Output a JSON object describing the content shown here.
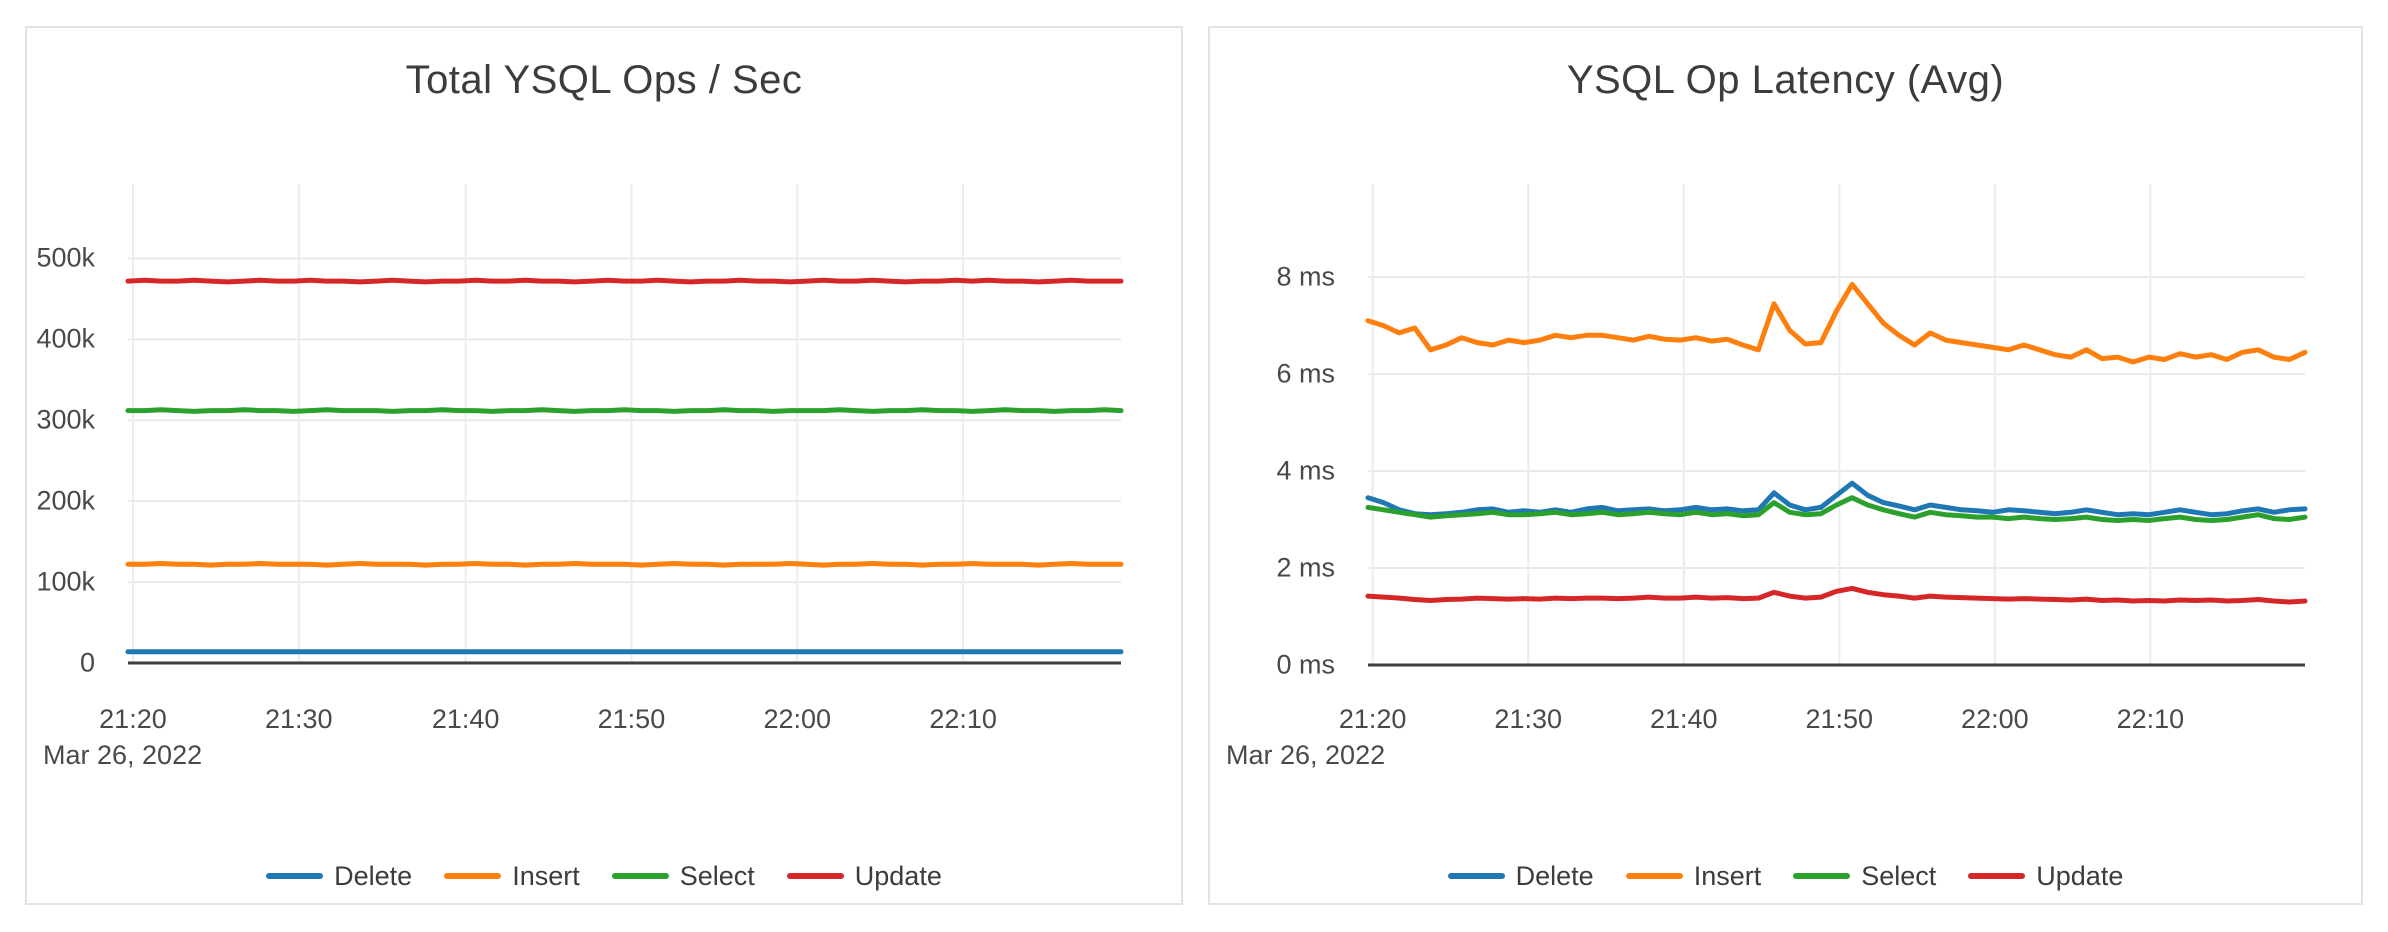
{
  "colors": {
    "delete_blue": "#1f77b4",
    "insert_orange": "#ff7f0e",
    "select_green": "#2ca02c",
    "update_red": "#d62728",
    "grid": "#e9e9e9",
    "axis_line": "#3f3f3f",
    "text": "#3c3c3c"
  },
  "chart_data": [
    {
      "type": "line",
      "title": "Total YSQL Ops / Sec",
      "x_axis_date": "Mar 26, 2022",
      "x_tick_labels": [
        "21:20",
        "21:30",
        "21:40",
        "21:50",
        "22:00",
        "22:10"
      ],
      "y_tick_labels": [
        "0",
        "100k",
        "200k",
        "300k",
        "400k",
        "500k"
      ],
      "y_tick_values": [
        0,
        100,
        200,
        300,
        400,
        500
      ],
      "y_unit": "thousand ops/sec",
      "ylim": [
        0,
        592
      ],
      "grid": true,
      "legend_position": "bottom",
      "x_points": 61,
      "x_range_minutes": [
        "21:19",
        "22:19"
      ],
      "series": [
        {
          "name": "Delete",
          "color": "#1f77b4",
          "values": [
            14,
            14,
            14,
            14,
            14,
            14,
            14,
            14,
            14,
            14,
            14,
            14,
            14,
            14,
            14,
            14,
            14,
            14,
            14,
            14,
            14,
            14,
            14,
            14,
            14,
            14,
            14,
            14,
            14,
            14,
            14,
            14,
            14,
            14,
            14,
            14,
            14,
            14,
            14,
            14,
            14,
            14,
            14,
            14,
            14,
            14,
            14,
            14,
            14,
            14,
            14,
            14,
            14,
            14,
            14,
            14,
            14,
            14,
            14,
            14,
            14
          ]
        },
        {
          "name": "Insert",
          "color": "#ff7f0e",
          "values": [
            122,
            122,
            123,
            122,
            122,
            121,
            122,
            122,
            123,
            122,
            122,
            122,
            121,
            122,
            123,
            122,
            122,
            122,
            121,
            122,
            122,
            123,
            122,
            122,
            121,
            122,
            122,
            123,
            122,
            122,
            122,
            121,
            122,
            123,
            122,
            122,
            121,
            122,
            122,
            122,
            123,
            122,
            121,
            122,
            122,
            123,
            122,
            122,
            121,
            122,
            122,
            123,
            122,
            122,
            122,
            121,
            122,
            123,
            122,
            122,
            122
          ]
        },
        {
          "name": "Select",
          "color": "#2ca02c",
          "values": [
            312,
            312,
            313,
            312,
            311,
            312,
            312,
            313,
            312,
            312,
            311,
            312,
            313,
            312,
            312,
            312,
            311,
            312,
            312,
            313,
            312,
            312,
            311,
            312,
            312,
            313,
            312,
            311,
            312,
            312,
            313,
            312,
            312,
            311,
            312,
            312,
            313,
            312,
            312,
            311,
            312,
            312,
            312,
            313,
            312,
            311,
            312,
            312,
            313,
            312,
            312,
            311,
            312,
            313,
            312,
            312,
            311,
            312,
            312,
            313,
            312
          ]
        },
        {
          "name": "Update",
          "color": "#d62728",
          "values": [
            472,
            473,
            472,
            472,
            473,
            472,
            471,
            472,
            473,
            472,
            472,
            473,
            472,
            472,
            471,
            472,
            473,
            472,
            471,
            472,
            472,
            473,
            472,
            472,
            473,
            472,
            472,
            471,
            472,
            473,
            472,
            472,
            473,
            472,
            471,
            472,
            472,
            473,
            472,
            472,
            471,
            472,
            473,
            472,
            472,
            473,
            472,
            471,
            472,
            472,
            473,
            472,
            473,
            472,
            472,
            471,
            472,
            473,
            472,
            472,
            472
          ]
        }
      ]
    },
    {
      "type": "line",
      "title": "YSQL Op Latency (Avg)",
      "x_axis_date": "Mar 26, 2022",
      "x_tick_labels": [
        "21:20",
        "21:30",
        "21:40",
        "21:50",
        "22:00",
        "22:10"
      ],
      "y_tick_labels": [
        "0 ms",
        "2 ms",
        "4 ms",
        "6 ms",
        "8 ms"
      ],
      "y_tick_values": [
        0,
        2,
        4,
        6,
        8
      ],
      "y_unit": "ms",
      "ylim": [
        0,
        9.92
      ],
      "grid": true,
      "legend_position": "bottom",
      "x_points": 61,
      "x_range_minutes": [
        "21:19",
        "22:19"
      ],
      "series": [
        {
          "name": "Delete",
          "color": "#1f77b4",
          "values": [
            3.45,
            3.35,
            3.2,
            3.12,
            3.1,
            3.12,
            3.15,
            3.2,
            3.22,
            3.15,
            3.18,
            3.15,
            3.2,
            3.15,
            3.22,
            3.25,
            3.18,
            3.2,
            3.22,
            3.18,
            3.2,
            3.25,
            3.2,
            3.22,
            3.18,
            3.2,
            3.55,
            3.3,
            3.2,
            3.25,
            3.5,
            3.75,
            3.5,
            3.35,
            3.28,
            3.2,
            3.3,
            3.25,
            3.2,
            3.18,
            3.15,
            3.2,
            3.18,
            3.15,
            3.12,
            3.15,
            3.2,
            3.15,
            3.1,
            3.12,
            3.1,
            3.15,
            3.2,
            3.15,
            3.1,
            3.12,
            3.18,
            3.22,
            3.15,
            3.2,
            3.22
          ]
        },
        {
          "name": "Insert",
          "color": "#ff7f0e",
          "values": [
            7.1,
            7.0,
            6.85,
            6.95,
            6.5,
            6.6,
            6.75,
            6.65,
            6.6,
            6.7,
            6.65,
            6.7,
            6.8,
            6.75,
            6.8,
            6.8,
            6.75,
            6.7,
            6.78,
            6.72,
            6.7,
            6.75,
            6.68,
            6.72,
            6.6,
            6.5,
            7.45,
            6.9,
            6.62,
            6.65,
            7.3,
            7.85,
            7.45,
            7.05,
            6.8,
            6.6,
            6.85,
            6.7,
            6.65,
            6.6,
            6.55,
            6.5,
            6.6,
            6.5,
            6.4,
            6.35,
            6.5,
            6.32,
            6.35,
            6.25,
            6.35,
            6.3,
            6.42,
            6.35,
            6.4,
            6.3,
            6.45,
            6.5,
            6.35,
            6.3,
            6.45
          ]
        },
        {
          "name": "Select",
          "color": "#2ca02c",
          "values": [
            3.25,
            3.2,
            3.15,
            3.1,
            3.05,
            3.08,
            3.1,
            3.12,
            3.15,
            3.1,
            3.1,
            3.12,
            3.15,
            3.1,
            3.12,
            3.15,
            3.1,
            3.12,
            3.15,
            3.12,
            3.1,
            3.15,
            3.1,
            3.12,
            3.08,
            3.1,
            3.35,
            3.15,
            3.1,
            3.12,
            3.3,
            3.45,
            3.3,
            3.2,
            3.12,
            3.05,
            3.15,
            3.1,
            3.08,
            3.05,
            3.05,
            3.02,
            3.05,
            3.02,
            3.0,
            3.02,
            3.05,
            3.0,
            2.98,
            3.0,
            2.98,
            3.02,
            3.05,
            3.0,
            2.98,
            3.0,
            3.05,
            3.1,
            3.02,
            3.0,
            3.05
          ]
        },
        {
          "name": "Update",
          "color": "#d62728",
          "values": [
            1.42,
            1.4,
            1.38,
            1.35,
            1.33,
            1.35,
            1.36,
            1.38,
            1.37,
            1.36,
            1.37,
            1.36,
            1.38,
            1.37,
            1.38,
            1.38,
            1.37,
            1.38,
            1.4,
            1.38,
            1.38,
            1.4,
            1.38,
            1.39,
            1.37,
            1.38,
            1.5,
            1.42,
            1.38,
            1.4,
            1.52,
            1.58,
            1.5,
            1.45,
            1.42,
            1.38,
            1.42,
            1.4,
            1.39,
            1.38,
            1.37,
            1.36,
            1.37,
            1.36,
            1.35,
            1.34,
            1.36,
            1.33,
            1.34,
            1.32,
            1.33,
            1.32,
            1.34,
            1.33,
            1.34,
            1.32,
            1.33,
            1.35,
            1.32,
            1.3,
            1.32
          ]
        }
      ]
    }
  ]
}
